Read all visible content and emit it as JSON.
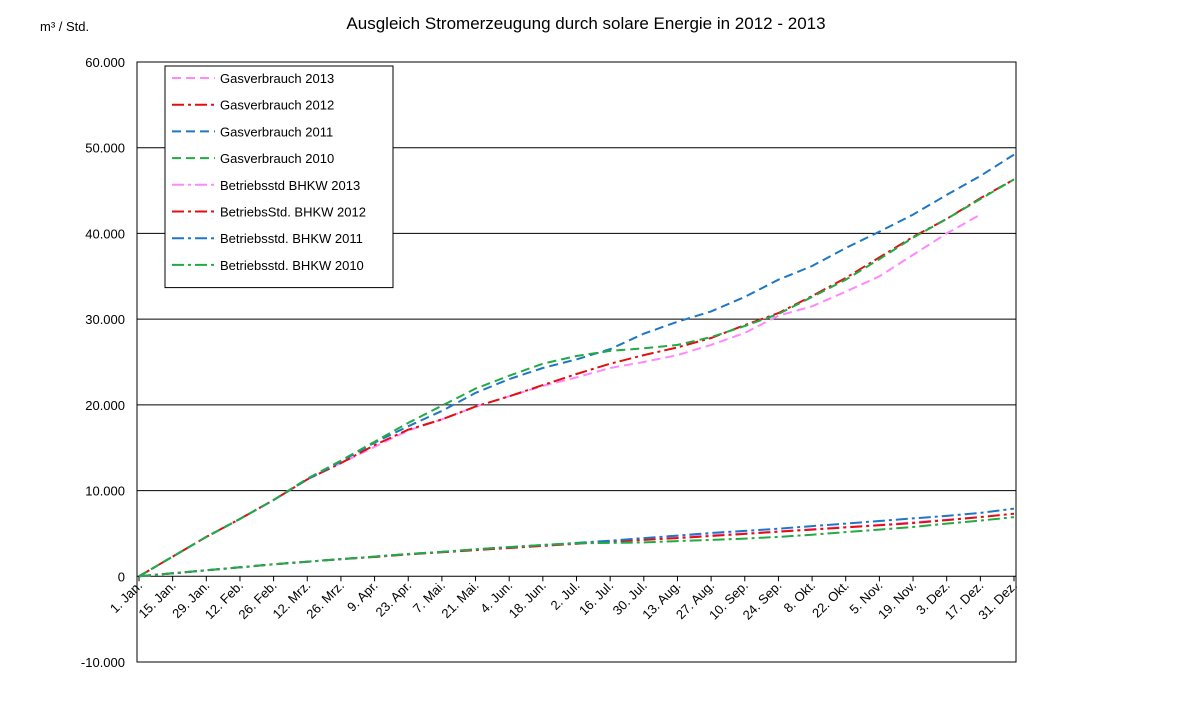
{
  "chart_data": {
    "type": "line",
    "title": "Ausgleich Stromerzeugung  durch solare Energie in 2012 - 2013",
    "ylabel": "m³ / Std.",
    "xlabel": "",
    "ylim": [
      -10000,
      60000
    ],
    "yticks": [
      -10000,
      0,
      10000,
      20000,
      30000,
      40000,
      50000,
      60000
    ],
    "ytick_labels": [
      "-10.000",
      "0",
      "10.000",
      "20.000",
      "30.000",
      "40.000",
      "50.000",
      "60.000"
    ],
    "grid": "horizontal major",
    "legend_position": "top-left",
    "categories": [
      "1. Jan.",
      "15. Jan.",
      "29. Jan.",
      "12. Feb.",
      "26. Feb.",
      "12. Mrz.",
      "26. Mrz.",
      "9. Apr.",
      "23. Apr.",
      "7. Mai.",
      "21. Mai.",
      "4. Jun.",
      "18. Jun.",
      "2. Jul.",
      "16. Jul.",
      "30. Jul.",
      "13. Aug.",
      "27. Aug.",
      "10. Sep.",
      "24. Sep.",
      "8. Okt.",
      "22. Okt.",
      "5. Nov.",
      "19. Nov.",
      "3. Dez.",
      "17. Dez.",
      "31. Dez."
    ],
    "series": [
      {
        "name": "Gasverbrauch 2013",
        "color": "#ff88ff",
        "dash": "dash",
        "values": [
          0,
          2300,
          4600,
          6700,
          8900,
          11300,
          13200,
          15100,
          17000,
          18300,
          19800,
          21000,
          22200,
          23200,
          24300,
          25000,
          25800,
          27000,
          28400,
          30400,
          31500,
          33200,
          35000,
          37500,
          40000,
          42200,
          null
        ]
      },
      {
        "name": "Gasverbrauch 2012",
        "color": "#e01010",
        "dash": "dashdot",
        "values": [
          0,
          2300,
          4600,
          6700,
          8900,
          11300,
          13200,
          15300,
          17100,
          18300,
          19800,
          21000,
          22300,
          23600,
          24800,
          25800,
          26700,
          27800,
          29300,
          30700,
          32700,
          34800,
          37200,
          39600,
          41700,
          44100,
          46300
        ]
      },
      {
        "name": "Gasverbrauch 2011",
        "color": "#1f77c4",
        "dash": "dash",
        "values": [
          0,
          2300,
          4600,
          6700,
          8900,
          11300,
          13400,
          15600,
          17500,
          19300,
          21400,
          23000,
          24300,
          25300,
          26500,
          28300,
          29700,
          30900,
          32600,
          34600,
          36200,
          38300,
          40200,
          42200,
          44500,
          46700,
          49200
        ]
      },
      {
        "name": "Gasverbrauch 2010",
        "color": "#22aa44",
        "dash": "dash",
        "values": [
          0,
          2300,
          4600,
          6700,
          8900,
          11400,
          13500,
          15700,
          17900,
          19900,
          21900,
          23400,
          24800,
          25700,
          26300,
          26600,
          27000,
          27900,
          29200,
          30600,
          32600,
          34600,
          37000,
          39500,
          41700,
          44000,
          46300
        ]
      },
      {
        "name": "Betriebsstd BHKW 2013",
        "color": "#ff88ff",
        "dash": "dashdot",
        "values": [
          0,
          350,
          700,
          1050,
          1400,
          1700,
          2000,
          2300,
          2600,
          2850,
          3100,
          3350,
          3550,
          3800,
          4050,
          4300,
          4550,
          4800,
          5000,
          5250,
          5500,
          5750,
          6000,
          6300,
          6600,
          6900,
          null
        ]
      },
      {
        "name": "BetriebsStd. BHKW 2012",
        "color": "#e01010",
        "dash": "dashdot",
        "values": [
          0,
          350,
          700,
          1050,
          1400,
          1700,
          2000,
          2250,
          2550,
          2800,
          3050,
          3300,
          3550,
          3800,
          4050,
          4250,
          4450,
          4700,
          4950,
          5200,
          5450,
          5700,
          5950,
          6200,
          6550,
          6900,
          7300
        ]
      },
      {
        "name": "Betriebsstd. BHKW 2011",
        "color": "#1f77c4",
        "dash": "dashdot",
        "values": [
          0,
          350,
          700,
          1050,
          1400,
          1700,
          2000,
          2300,
          2600,
          2850,
          3150,
          3400,
          3650,
          3900,
          4150,
          4450,
          4750,
          5050,
          5300,
          5550,
          5850,
          6150,
          6450,
          6750,
          7050,
          7400,
          7900
        ]
      },
      {
        "name": "Betriebsstd. BHKW 2010",
        "color": "#22aa44",
        "dash": "dashdot",
        "values": [
          0,
          350,
          700,
          1050,
          1400,
          1700,
          2000,
          2300,
          2600,
          2850,
          3150,
          3400,
          3650,
          3850,
          3900,
          3950,
          4100,
          4250,
          4400,
          4600,
          4850,
          5150,
          5450,
          5750,
          6150,
          6500,
          6900
        ]
      }
    ]
  }
}
